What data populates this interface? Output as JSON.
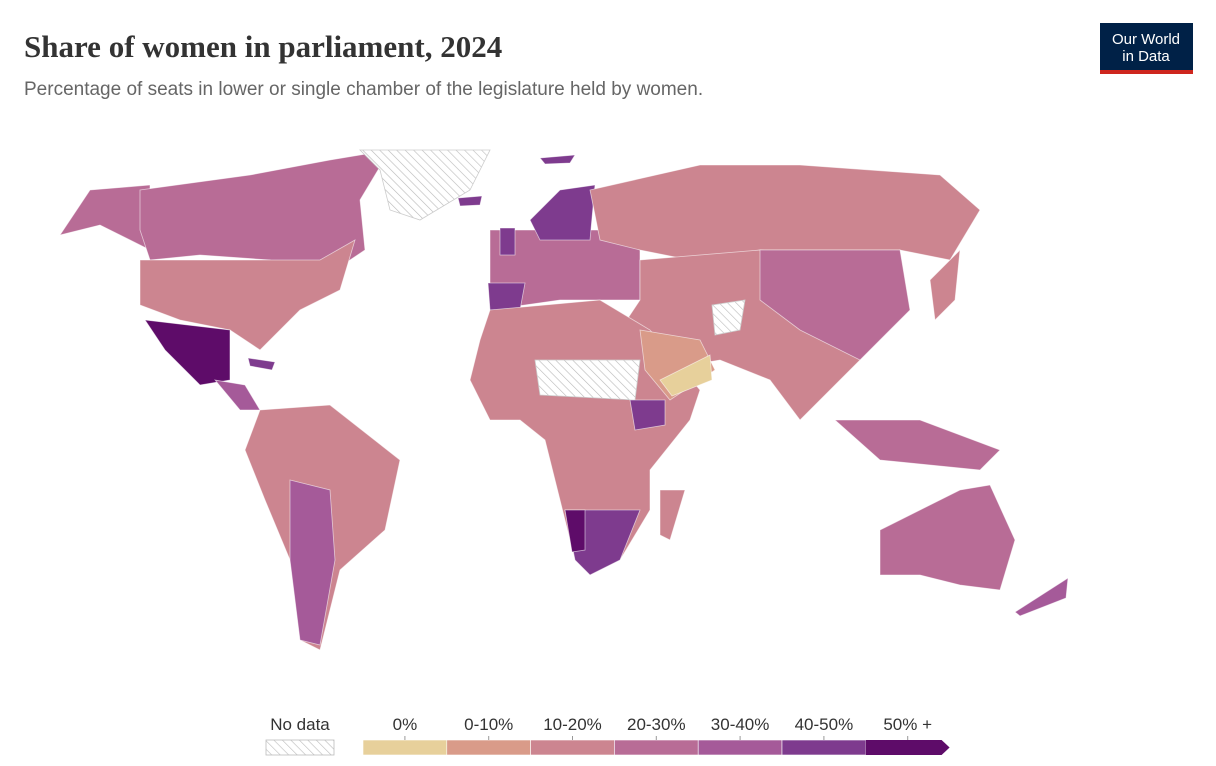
{
  "header": {
    "title": "Share of women in parliament, 2024",
    "subtitle": "Percentage of seats in lower or single chamber of the legislature held by women.",
    "logo": [
      "Our World",
      "in Data"
    ]
  },
  "legend": {
    "no_data_label": "No data",
    "bins": [
      {
        "label": "0%",
        "color": "#e7d09b"
      },
      {
        "label": "0-10%",
        "color": "#d99b89"
      },
      {
        "label": "10-20%",
        "color": "#cc8590"
      },
      {
        "label": "20-30%",
        "color": "#b86c96"
      },
      {
        "label": "30-40%",
        "color": "#a55a99"
      },
      {
        "label": "40-50%",
        "color": "#7e3b8e"
      },
      {
        "label": "50% +",
        "color": "#5e0c69"
      }
    ]
  }
}
